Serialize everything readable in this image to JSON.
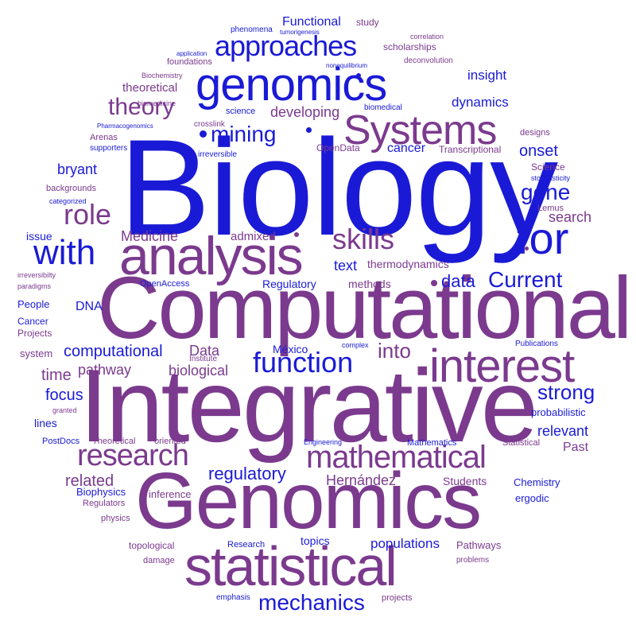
{
  "colors": {
    "blue": "#1a1ad6",
    "purple": "#7b3a8e",
    "background": "#ffffff"
  },
  "words": {
    "biology": "Biology",
    "integrative": "Integrative",
    "computational_big": "Computational",
    "genomics_big": "Genomics",
    "statistical": "statistical",
    "analysis": "analysis",
    "genomics_top": "genomics",
    "interest": "interest",
    "systems": "Systems",
    "mathematical": "mathematical",
    "for": "for",
    "with": "with",
    "research": "research",
    "approaches": "approaches",
    "function": "function",
    "role": "role",
    "mechanics": "mechanics",
    "skills": "skills",
    "theory": "theory",
    "current": "Current",
    "strong": "strong",
    "mining": "mining",
    "gene": "gene",
    "regulatory_lc": "regulatory",
    "computational_small": "computational",
    "biological": "biological",
    "pathway": "pathway",
    "related": "related",
    "medicine": "Medicine",
    "data_lc": "data",
    "data_cap": "Data",
    "into": "into",
    "time": "time",
    "focus": "focus",
    "text": "text",
    "developing": "developing",
    "dynamics": "dynamics",
    "hernandez": "Hernández",
    "relevant": "relevant",
    "populations": "populations",
    "bryant": "bryant",
    "onset": "onset",
    "insight": "insight",
    "functional": "Functional",
    "search": "search",
    "cancer_lc": "cancer",
    "mexico": "México",
    "students": "Students",
    "past": "Past",
    "dna": "DNA",
    "admixed": "admixed",
    "methods": "methods",
    "thermodynamics": "thermodynamics",
    "theoretical": "theoretical",
    "regulatory_cap": "Regulatory",
    "lines": "lines",
    "topics": "topics",
    "issue": "issue",
    "study": "study",
    "scholarships": "scholarships",
    "chemistry": "Chemistry",
    "probabilistic": "probabilistic",
    "ergodic": "ergodic",
    "inference": "inference",
    "biophysics": "Biophysics",
    "system": "system",
    "projects_cap": "Projects",
    "cancer_cap": "Cancer",
    "people": "People",
    "pathways": "Pathways",
    "topological": "topological",
    "research_small": "Research",
    "statistical_small": "Statistical",
    "mathematics": "Mathematics",
    "theoretical_cap": "Theoretical",
    "oriented": "oriented",
    "postdocs": "PostDocs",
    "regulators": "Regulators",
    "physics": "physics",
    "damage": "damage",
    "emphasis": "emphasis",
    "projects_lc": "projects",
    "problems": "problems",
    "engineering": "Engineering",
    "institute": "Institute",
    "publications": "Publications",
    "complex": "complex",
    "openaccess": "OpenAccess",
    "irreversibilty": "irreversibilty",
    "paradigms": "paradigms",
    "granted": "granted",
    "backgrounds": "backgrounds",
    "categorized": "categorized",
    "arenas": "Arenas",
    "supporters": "supporters",
    "pharmacogenomics": "Pharmacogenomics",
    "biomedicine": "biomedicine",
    "biochemistry": "Biochemistry",
    "foundations": "foundations",
    "application": "application",
    "phenomena": "phenomena",
    "tumorigenesis": "tumorigenesis",
    "nonequilibrium": "nonequilibrium",
    "correlation": "correlation",
    "deconvolution": "deconvolution",
    "biomedical": "biomedical",
    "science_lc": "science",
    "crosslink": "crosslink",
    "irreversible": "irreversible",
    "opendata": "OpenData",
    "transcriptional": "Transcriptional",
    "designs": "designs",
    "science_cap": "Science",
    "stochasticity": "stochasticity",
    "lemus": "Lemus"
  }
}
